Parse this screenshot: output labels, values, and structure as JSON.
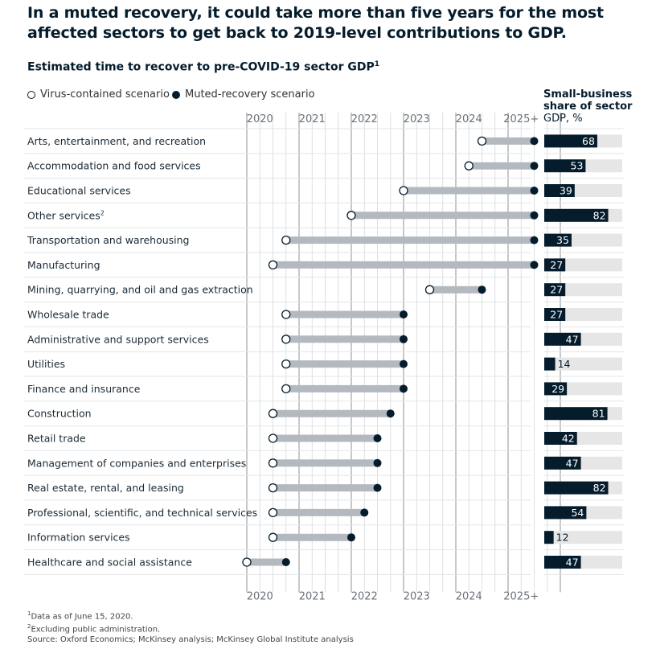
{
  "headline": "In a muted recovery, it could take more than five years for the most affected sectors to get back to 2019-level contributions to GDP.",
  "subtitle": "Estimated time to recover to pre-COVID-19 sector GDP",
  "subtitle_note_mark": "1",
  "legend": {
    "open_label": "Virus-contained scenario",
    "filled_label": "Muted-recovery scenario"
  },
  "share_header": {
    "bold": "Small-business share of sector",
    "rest": "GDP, %"
  },
  "colors": {
    "dark": "#051c2c",
    "bar": "#b3b9bf",
    "grid": "#9aa0a6",
    "share_bg": "#e6e6e6"
  },
  "chart_data": {
    "type": "dumbbell",
    "x_axis_labels": [
      "2020",
      "2021",
      "2022",
      "2023",
      "2024",
      "2025+"
    ],
    "x_domain": [
      2020,
      2026
    ],
    "series_names": [
      "Virus-contained scenario",
      "Muted-recovery scenario"
    ],
    "rows": [
      {
        "sector": "Arts, entertainment, and recreation",
        "note": "",
        "virus_contained": 2024.5,
        "muted_recovery": 2025.5,
        "small_business_share": 68
      },
      {
        "sector": "Accommodation and food services",
        "note": "",
        "virus_contained": 2024.25,
        "muted_recovery": 2025.5,
        "small_business_share": 53
      },
      {
        "sector": "Educational services",
        "note": "",
        "virus_contained": 2023.0,
        "muted_recovery": 2025.5,
        "small_business_share": 39
      },
      {
        "sector": "Other services",
        "note": "2",
        "virus_contained": 2022.0,
        "muted_recovery": 2025.5,
        "small_business_share": 82
      },
      {
        "sector": "Transportation and warehousing",
        "note": "",
        "virus_contained": 2020.75,
        "muted_recovery": 2025.5,
        "small_business_share": 35
      },
      {
        "sector": "Manufacturing",
        "note": "",
        "virus_contained": 2020.5,
        "muted_recovery": 2025.5,
        "small_business_share": 27
      },
      {
        "sector": "Mining, quarrying, and oil and gas extraction",
        "note": "",
        "virus_contained": 2023.5,
        "muted_recovery": 2024.5,
        "small_business_share": 27
      },
      {
        "sector": "Wholesale trade",
        "note": "",
        "virus_contained": 2020.75,
        "muted_recovery": 2023.0,
        "small_business_share": 27
      },
      {
        "sector": "Administrative and support services",
        "note": "",
        "virus_contained": 2020.75,
        "muted_recovery": 2023.0,
        "small_business_share": 47
      },
      {
        "sector": "Utilities",
        "note": "",
        "virus_contained": 2020.75,
        "muted_recovery": 2023.0,
        "small_business_share": 14
      },
      {
        "sector": "Finance and insurance",
        "note": "",
        "virus_contained": 2020.75,
        "muted_recovery": 2023.0,
        "small_business_share": 29
      },
      {
        "sector": "Construction",
        "note": "",
        "virus_contained": 2020.5,
        "muted_recovery": 2022.75,
        "small_business_share": 81
      },
      {
        "sector": "Retail trade",
        "note": "",
        "virus_contained": 2020.5,
        "muted_recovery": 2022.5,
        "small_business_share": 42
      },
      {
        "sector": "Management of companies and enterprises",
        "note": "",
        "virus_contained": 2020.5,
        "muted_recovery": 2022.5,
        "small_business_share": 47
      },
      {
        "sector": "Real estate, rental, and leasing",
        "note": "",
        "virus_contained": 2020.5,
        "muted_recovery": 2022.5,
        "small_business_share": 82
      },
      {
        "sector": "Professional, scientific, and technical services",
        "note": "",
        "virus_contained": 2020.5,
        "muted_recovery": 2022.25,
        "small_business_share": 54
      },
      {
        "sector": "Information services",
        "note": "",
        "virus_contained": 2020.5,
        "muted_recovery": 2022.0,
        "small_business_share": 12
      },
      {
        "sector": "Healthcare and social assistance",
        "note": "",
        "virus_contained": 2020.0,
        "muted_recovery": 2020.75,
        "small_business_share": 47
      }
    ]
  },
  "notes": [
    {
      "mark": "1",
      "text": "Data as of June 15, 2020."
    },
    {
      "mark": "2",
      "text": "Excluding public administration."
    },
    {
      "mark": "",
      "text": " Source: Oxford Economics; McKinsey analysis; McKinsey Global Institute analysis"
    }
  ]
}
